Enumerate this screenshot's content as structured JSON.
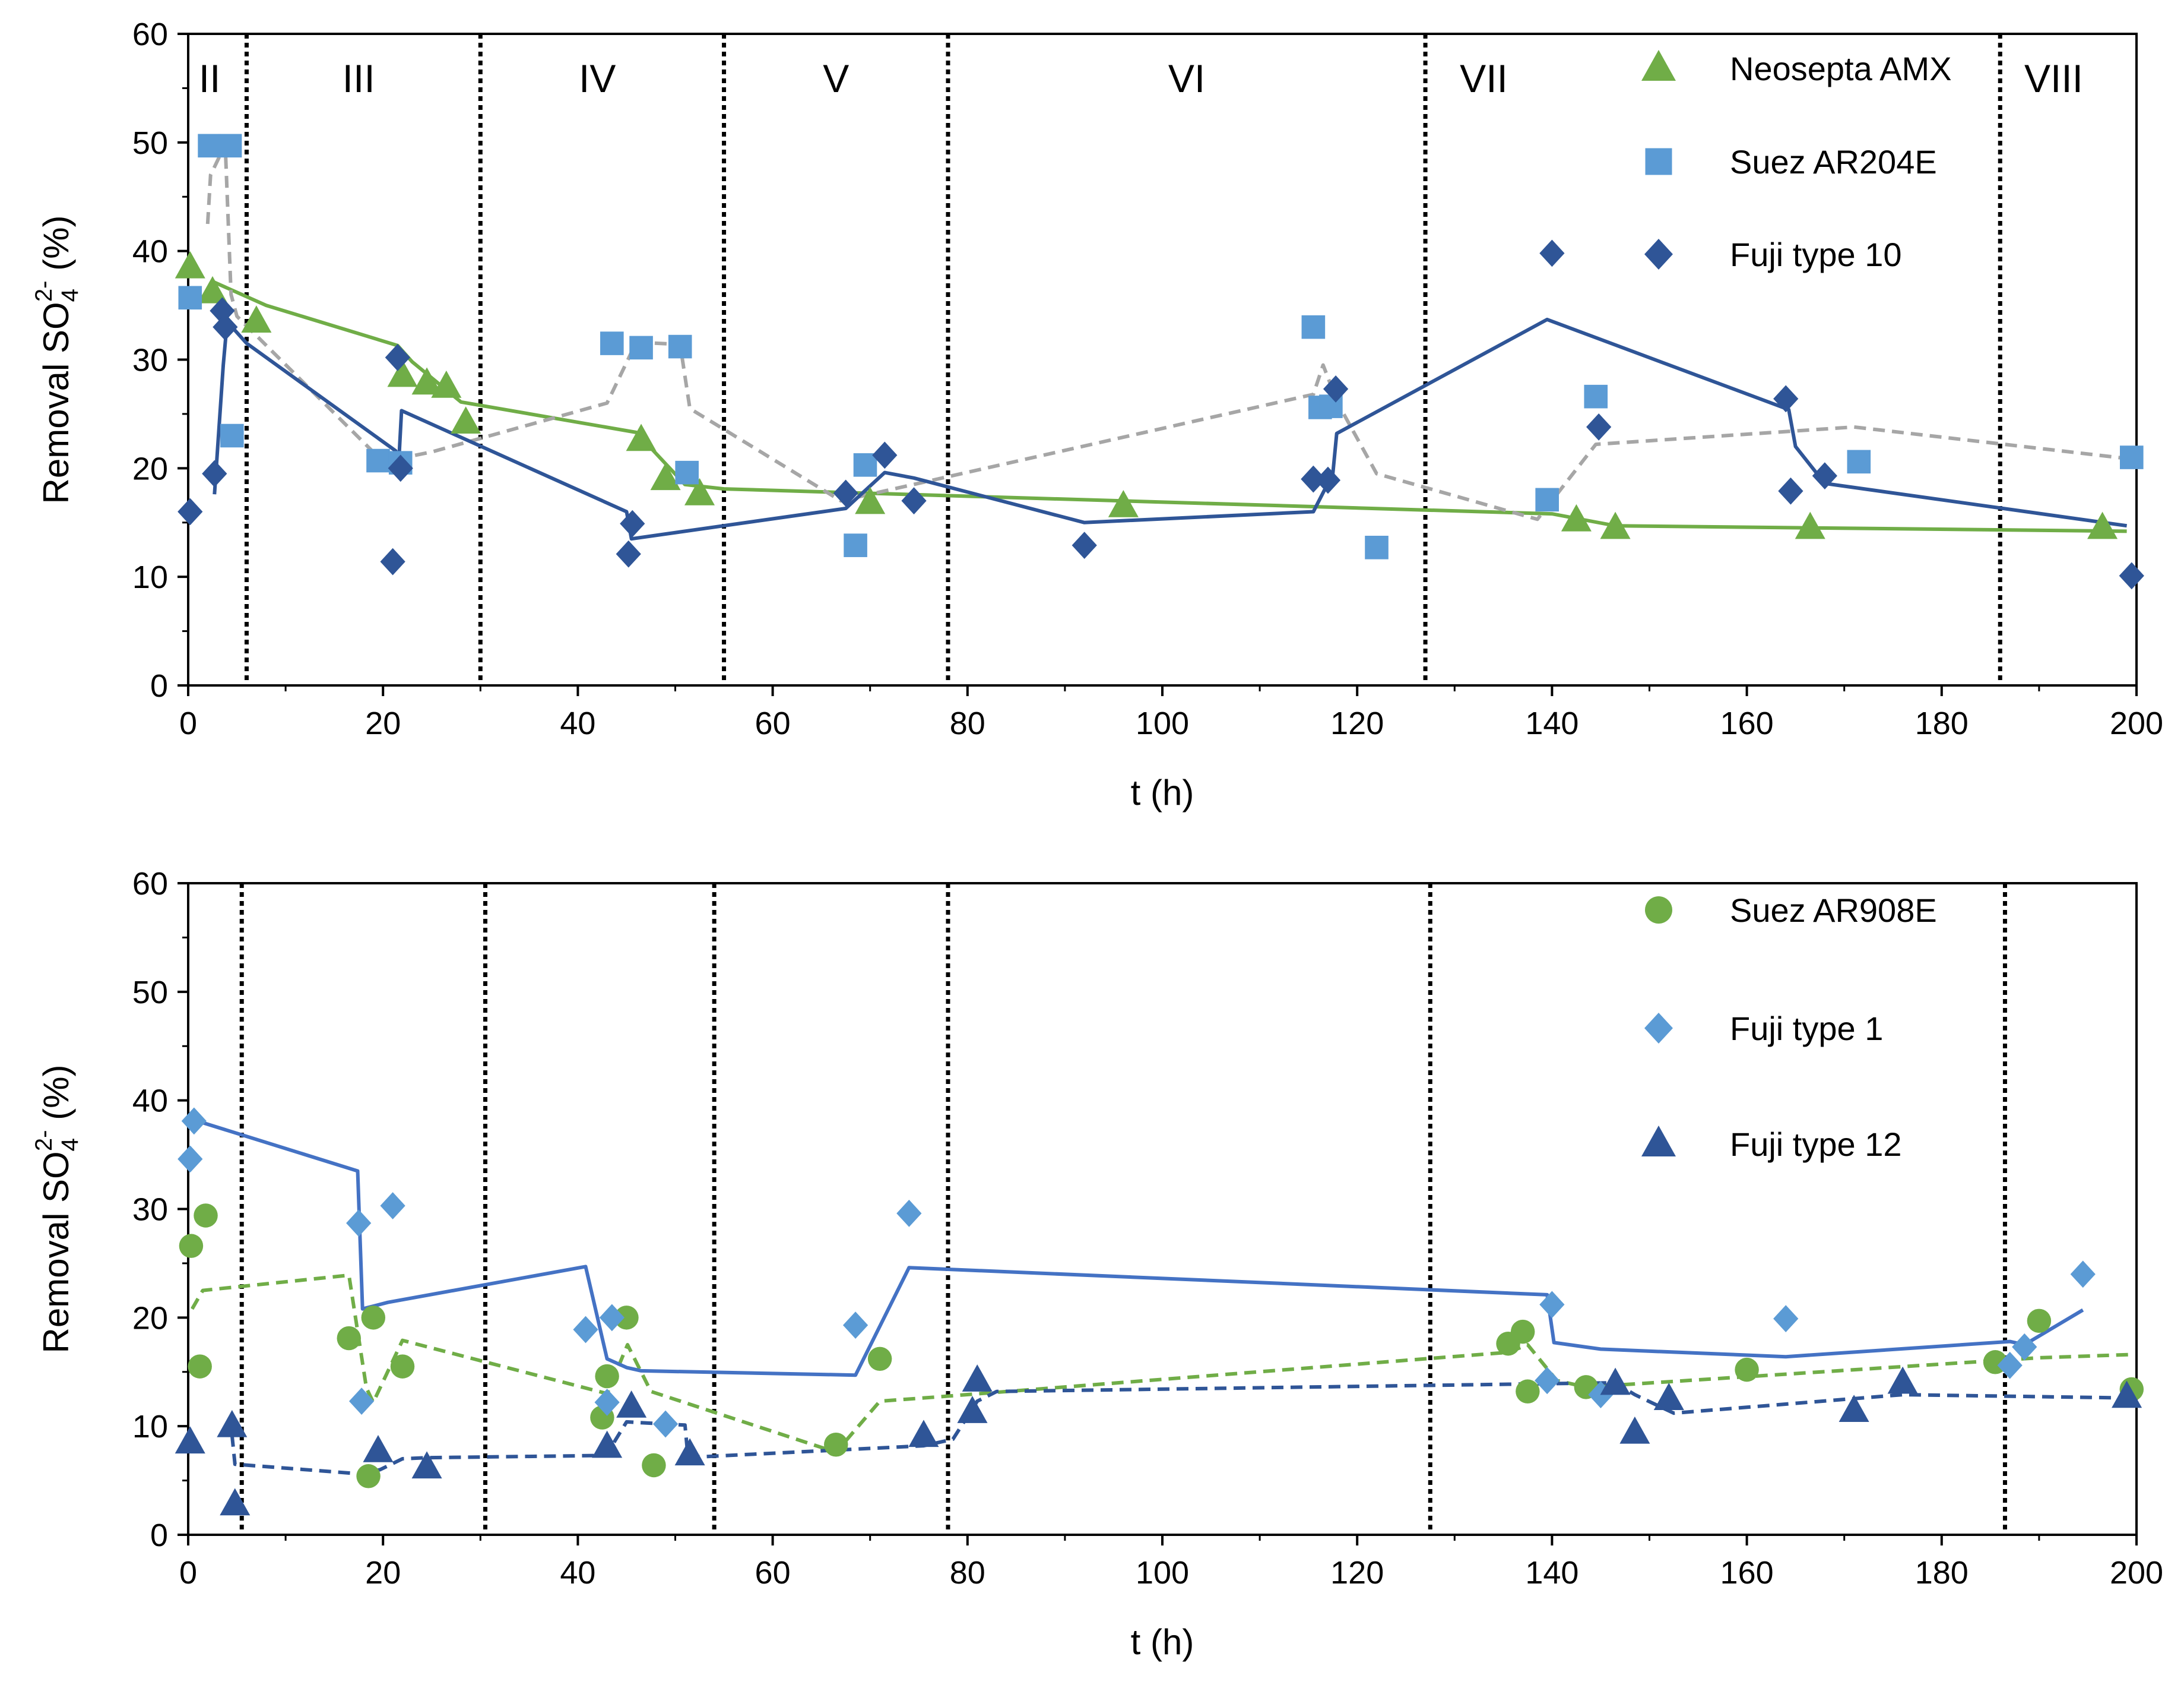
{
  "chart_data": [
    {
      "type": "scatter",
      "xlabel": "t (h)",
      "ylabel": {
        "prefix": "Removal SO",
        "sub": "4",
        "sup": "2-",
        "suffix": " (%)"
      },
      "xlim": [
        0,
        200
      ],
      "ylim": [
        0,
        60
      ],
      "x_ticks": [
        "0",
        "20",
        "40",
        "60",
        "80",
        "100",
        "120",
        "140",
        "160",
        "180",
        "200"
      ],
      "y_ticks": [
        "0",
        "10",
        "20",
        "30",
        "40",
        "50",
        "60"
      ],
      "grid": false,
      "legend_position": "top-right",
      "phase_boundaries": [
        6,
        30,
        55,
        78,
        127,
        186
      ],
      "phases": [
        {
          "label": "II",
          "x": 2.2
        },
        {
          "label": "III",
          "x": 17.5
        },
        {
          "label": "IV",
          "x": 42
        },
        {
          "label": "V",
          "x": 66.5
        },
        {
          "label": "VI",
          "x": 102.5
        },
        {
          "label": "VII",
          "x": 133
        },
        {
          "label": "VIII",
          "x": 191.5
        }
      ],
      "series": [
        {
          "name": "Neosepta AMX",
          "marker": "triangle",
          "color": "#70AD47",
          "line_color": "#70AD47",
          "line_style": "solid",
          "points": [
            [
              0.2,
              38.5
            ],
            [
              2.5,
              36.2
            ],
            [
              7,
              33.5
            ],
            [
              22,
              28.5
            ],
            [
              24.5,
              27.8
            ],
            [
              26.5,
              27.5
            ],
            [
              28.5,
              24.2
            ],
            [
              46.5,
              22.6
            ],
            [
              49,
              19
            ],
            [
              52.5,
              17.6
            ],
            [
              70,
              16.8
            ],
            [
              96,
              16.5
            ],
            [
              142.5,
              15.2
            ],
            [
              146.5,
              14.5
            ],
            [
              166.5,
              14.5
            ],
            [
              196.5,
              14.5
            ]
          ],
          "trend": [
            [
              2.5,
              37.2
            ],
            [
              8,
              35
            ],
            [
              21.5,
              31.3
            ],
            [
              23,
              29.8
            ],
            [
              28,
              26.1
            ],
            [
              46,
              23.3
            ],
            [
              51,
              18.5
            ],
            [
              55,
              18.1
            ],
            [
              140,
              15.8
            ],
            [
              146.5,
              14.7
            ],
            [
              199,
              14.2
            ]
          ]
        },
        {
          "name": "Suez AR204E",
          "marker": "square",
          "color": "#5B9BD5",
          "line_color": "#A6A6A6",
          "line_style": "dashed",
          "points": [
            [
              0.2,
              35.7
            ],
            [
              2.2,
              49.7
            ],
            [
              4.3,
              49.7
            ],
            [
              4.5,
              23
            ],
            [
              19.5,
              20.7
            ],
            [
              21.8,
              20.5
            ],
            [
              43.5,
              31.5
            ],
            [
              46.5,
              31.1
            ],
            [
              50.5,
              31.2
            ],
            [
              51.2,
              19.6
            ],
            [
              68.5,
              12.9
            ],
            [
              69.5,
              20.3
            ],
            [
              115.5,
              33
            ],
            [
              116.2,
              25.6
            ],
            [
              117.3,
              25.7
            ],
            [
              122,
              12.7
            ],
            [
              139.5,
              17.1
            ],
            [
              144.5,
              26.6
            ],
            [
              171.5,
              20.6
            ],
            [
              199.5,
              21
            ]
          ],
          "trend": [
            [
              2,
              42.5
            ],
            [
              2.3,
              47
            ],
            [
              3.8,
              49.8
            ],
            [
              4.4,
              36
            ],
            [
              5,
              34
            ],
            [
              20,
              20.6
            ],
            [
              25,
              21.5
            ],
            [
              43,
              26
            ],
            [
              46,
              31.6
            ],
            [
              50.5,
              31.4
            ],
            [
              51.5,
              25.5
            ],
            [
              67,
              17
            ],
            [
              115.5,
              26.8
            ],
            [
              116.5,
              29.5
            ],
            [
              118,
              26
            ],
            [
              122,
              19.5
            ],
            [
              138.5,
              15.3
            ],
            [
              144.5,
              22.2
            ],
            [
              171,
              23.8
            ],
            [
              199,
              20.9
            ]
          ]
        },
        {
          "name": "Fuji type 10",
          "marker": "diamond",
          "color": "#2F5597",
          "line_color": "#2F5597",
          "line_style": "solid",
          "points": [
            [
              0.2,
              16
            ],
            [
              2.7,
              19.5
            ],
            [
              3.5,
              34.5
            ],
            [
              3.8,
              33
            ],
            [
              21.5,
              30.2
            ],
            [
              21,
              11.4
            ],
            [
              21.8,
              20
            ],
            [
              45.2,
              12.1
            ],
            [
              45.6,
              14.9
            ],
            [
              67.5,
              17.7
            ],
            [
              71.5,
              21.2
            ],
            [
              74.5,
              17
            ],
            [
              92,
              12.9
            ],
            [
              115.5,
              19
            ],
            [
              117,
              18.9
            ],
            [
              117.8,
              27.3
            ],
            [
              140,
              39.8
            ],
            [
              144.8,
              23.8
            ],
            [
              164,
              26.4
            ],
            [
              164.5,
              17.9
            ],
            [
              168,
              19.3
            ],
            [
              199.5,
              10.1
            ]
          ],
          "trend": [
            [
              2.7,
              17.6
            ],
            [
              3.6,
              29.5
            ],
            [
              4,
              33.5
            ],
            [
              6,
              31.5
            ],
            [
              21.3,
              21.6
            ],
            [
              21.6,
              20.3
            ],
            [
              21.9,
              25.3
            ],
            [
              45,
              16
            ],
            [
              45.5,
              13.5
            ],
            [
              67.5,
              16.3
            ],
            [
              71.5,
              19.6
            ],
            [
              74.5,
              19.1
            ],
            [
              92,
              15
            ],
            [
              115.5,
              16
            ],
            [
              117.5,
              19.5
            ],
            [
              117.9,
              23.2
            ],
            [
              139.5,
              33.7
            ],
            [
              164.3,
              25.4
            ],
            [
              165,
              22
            ],
            [
              168,
              18.6
            ],
            [
              199,
              14.7
            ]
          ]
        }
      ]
    },
    {
      "type": "scatter",
      "xlabel": "t (h)",
      "ylabel": {
        "prefix": "Removal SO",
        "sub": "4",
        "sup": "2-",
        "suffix": " (%)"
      },
      "xlim": [
        0,
        200
      ],
      "ylim": [
        0,
        60
      ],
      "x_ticks": [
        "0",
        "20",
        "40",
        "60",
        "80",
        "100",
        "120",
        "140",
        "160",
        "180",
        "200"
      ],
      "y_ticks": [
        "0",
        "10",
        "20",
        "30",
        "40",
        "50",
        "60"
      ],
      "grid": false,
      "legend_position": "top-right",
      "phase_boundaries": [
        5.5,
        30.5,
        54,
        78,
        127.5,
        186.5
      ],
      "phases": [],
      "series": [
        {
          "name": "Suez AR908E",
          "marker": "circle",
          "color": "#70AD47",
          "line_color": "#70AD47",
          "line_style": "dashed",
          "points": [
            [
              0.3,
              26.6
            ],
            [
              1.2,
              15.5
            ],
            [
              1.8,
              29.4
            ],
            [
              16.5,
              18.1
            ],
            [
              18.5,
              5.4
            ],
            [
              19,
              20
            ],
            [
              22,
              15.5
            ],
            [
              42.5,
              10.8
            ],
            [
              43,
              14.6
            ],
            [
              45,
              20
            ],
            [
              47.8,
              6.4
            ],
            [
              66.5,
              8.3
            ],
            [
              71,
              16.2
            ],
            [
              135.5,
              17.6
            ],
            [
              137,
              18.7
            ],
            [
              137.5,
              13.2
            ],
            [
              143.5,
              13.6
            ],
            [
              160,
              15.2
            ],
            [
              185.5,
              15.9
            ],
            [
              190,
              19.7
            ],
            [
              199.5,
              13.4
            ]
          ],
          "trend": [
            [
              0.4,
              20.8
            ],
            [
              1.5,
              22.5
            ],
            [
              16.5,
              23.9
            ],
            [
              18.3,
              13.5
            ],
            [
              19,
              12.2
            ],
            [
              22,
              17.9
            ],
            [
              43,
              13
            ],
            [
              45.1,
              17.5
            ],
            [
              47.5,
              13.2
            ],
            [
              66.5,
              7.6
            ],
            [
              71,
              12.3
            ],
            [
              77,
              12.7
            ],
            [
              135.5,
              16.8
            ],
            [
              137.5,
              17.5
            ],
            [
              140.5,
              14.2
            ],
            [
              143.5,
              13.6
            ],
            [
              190,
              16.3
            ],
            [
              199.5,
              16.6
            ]
          ]
        },
        {
          "name": "Fuji type 1",
          "marker": "diamond",
          "color": "#5B9BD5",
          "line_color": "#4472C4",
          "line_style": "solid",
          "points": [
            [
              0.2,
              34.6
            ],
            [
              0.6,
              38.1
            ],
            [
              17.5,
              28.7
            ],
            [
              17.8,
              12.3
            ],
            [
              21,
              30.3
            ],
            [
              40.8,
              18.9
            ],
            [
              43,
              12.2
            ],
            [
              43.5,
              20
            ],
            [
              49,
              10.2
            ],
            [
              68.5,
              19.3
            ],
            [
              74,
              29.6
            ],
            [
              139.5,
              14.2
            ],
            [
              140,
              21.2
            ],
            [
              145,
              12.9
            ],
            [
              164,
              19.9
            ],
            [
              187,
              15.6
            ],
            [
              188.5,
              17.3
            ],
            [
              194.5,
              24
            ]
          ],
          "trend": [
            [
              0.6,
              38.2
            ],
            [
              17.4,
              33.5
            ],
            [
              17.9,
              20.8
            ],
            [
              20.5,
              21.4
            ],
            [
              40.8,
              24.7
            ],
            [
              43,
              16.2
            ],
            [
              45,
              15.4
            ],
            [
              46.5,
              15.1
            ],
            [
              68.5,
              14.7
            ],
            [
              74,
              24.6
            ],
            [
              139.5,
              22.1
            ],
            [
              140.2,
              17.7
            ],
            [
              145,
              17.1
            ],
            [
              164,
              16.4
            ],
            [
              187,
              17.8
            ],
            [
              188.5,
              17.5
            ],
            [
              194.5,
              20.7
            ]
          ]
        },
        {
          "name": "Fuji type 12",
          "marker": "triangle",
          "color": "#2F5597",
          "line_color": "#2F5597",
          "line_style": "dashed",
          "points": [
            [
              0.2,
              8.5
            ],
            [
              4.5,
              10
            ],
            [
              4.8,
              2.8
            ],
            [
              19.5,
              7.7
            ],
            [
              24.5,
              6.2
            ],
            [
              43,
              8.1
            ],
            [
              45.5,
              11.8
            ],
            [
              51.5,
              7.4
            ],
            [
              75.5,
              9.1
            ],
            [
              80.5,
              11.3
            ],
            [
              81,
              14.2
            ],
            [
              146.5,
              13.9
            ],
            [
              148.5,
              9.4
            ],
            [
              152,
              12.5
            ],
            [
              171,
              11.4
            ],
            [
              176,
              14
            ],
            [
              199,
              12.7
            ]
          ],
          "trend": [
            [
              4.5,
              9.2
            ],
            [
              4.8,
              6.5
            ],
            [
              17.8,
              5.6
            ],
            [
              19.7,
              6
            ],
            [
              22,
              7
            ],
            [
              24.5,
              7.1
            ],
            [
              42.5,
              7.3
            ],
            [
              43.5,
              8.2
            ],
            [
              45,
              10.4
            ],
            [
              51,
              10.1
            ],
            [
              51.3,
              7.2
            ],
            [
              53,
              7.2
            ],
            [
              75.5,
              8.2
            ],
            [
              78.5,
              8.8
            ],
            [
              81,
              12.3
            ],
            [
              83,
              13.2
            ],
            [
              146.5,
              14
            ],
            [
              148.5,
              12.9
            ],
            [
              152.5,
              11.2
            ],
            [
              176,
              12.9
            ],
            [
              199,
              12.6
            ]
          ]
        }
      ]
    }
  ]
}
